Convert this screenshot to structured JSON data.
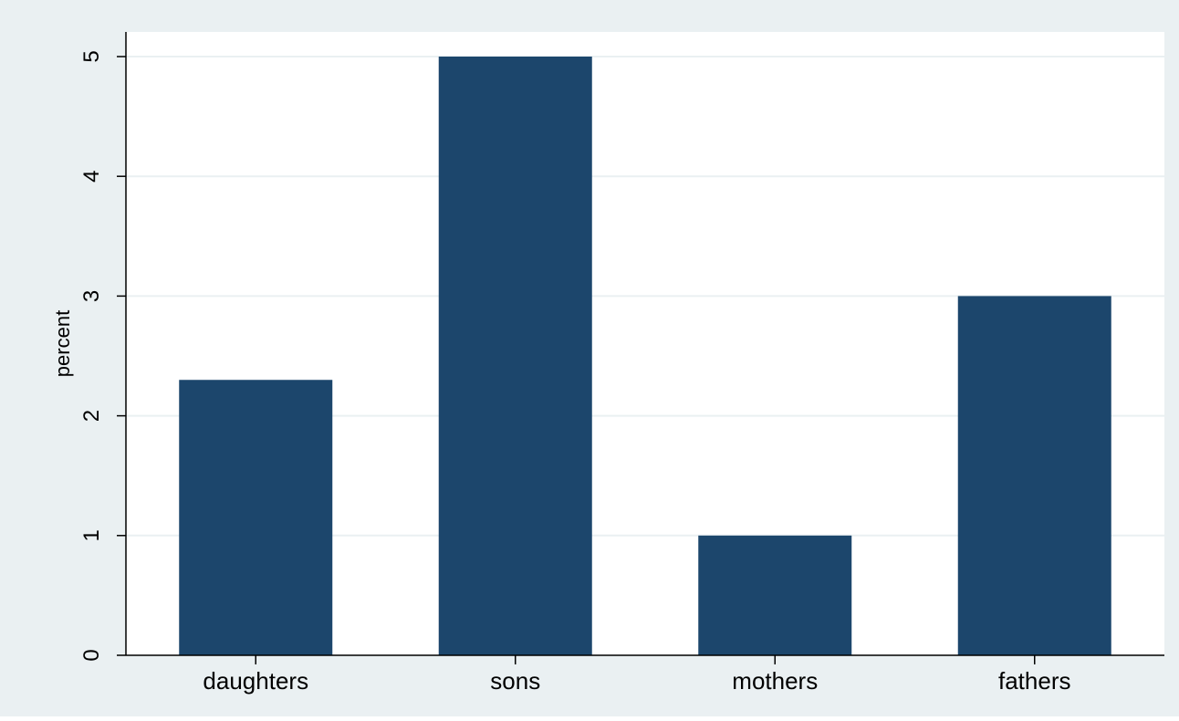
{
  "colors": {
    "outer_background": "#eaf0f2",
    "plot_background": "#ffffff",
    "bar": "#1c466c",
    "gridline": "#eaf0f2",
    "axis": "#000000"
  },
  "chart_data": {
    "type": "bar",
    "categories": [
      "daughters",
      "sons",
      "mothers",
      "fathers"
    ],
    "values": [
      2.3,
      5,
      1,
      3
    ],
    "title": "",
    "xlabel": "",
    "ylabel": "percent",
    "ylim": [
      0,
      5
    ],
    "yticks": [
      0,
      1,
      2,
      3,
      4,
      5
    ],
    "grid": true,
    "legend": "none"
  }
}
